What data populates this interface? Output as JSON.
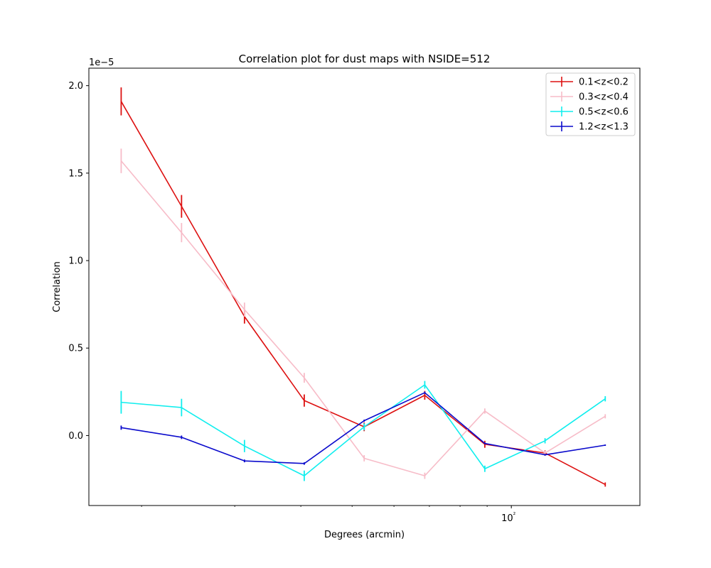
{
  "chart_data": {
    "type": "line",
    "title": "Correlation plot for dust maps with NSIDE=512",
    "xlabel": "Degrees (arcmin)",
    "ylabel": "Correlation",
    "y_offset_label": "1e−5",
    "x_scale": "log",
    "x_major_tick_label": "10²",
    "y_ticks": [
      0.0,
      0.5,
      1.0,
      1.5,
      2.0
    ],
    "y_tick_labels": [
      "0.0",
      "0.5",
      "1.0",
      "1.5",
      "2.0"
    ],
    "ylim": [
      -0.4,
      2.1
    ],
    "x": [
      18.3,
      23.8,
      31.3,
      40.6,
      52.7,
      68.6,
      89.1,
      115.8,
      150.5
    ],
    "legend_position": "upper right",
    "grid": false,
    "series": [
      {
        "name": "0.1<z<0.2",
        "color": "#dd1111",
        "values": [
          1.91,
          1.31,
          0.68,
          0.2,
          0.05,
          0.23,
          -0.05,
          -0.1,
          -0.28
        ],
        "errors": [
          0.08,
          0.065,
          0.04,
          0.035,
          0.025,
          0.025,
          0.02,
          0.015,
          0.012
        ]
      },
      {
        "name": "0.3<z<0.4",
        "color": "#f7bcc8",
        "values": [
          1.57,
          1.16,
          0.72,
          0.33,
          -0.13,
          -0.23,
          0.14,
          -0.1,
          0.11
        ],
        "errors": [
          0.07,
          0.055,
          0.04,
          0.028,
          0.018,
          0.018,
          0.015,
          0.012,
          0.012
        ]
      },
      {
        "name": "0.5<z<0.6",
        "color": "#11eeee",
        "values": [
          0.19,
          0.16,
          -0.06,
          -0.23,
          0.05,
          0.29,
          -0.19,
          -0.03,
          0.21
        ],
        "errors": [
          0.065,
          0.05,
          0.035,
          0.03,
          0.02,
          0.022,
          0.018,
          0.015,
          0.015
        ]
      },
      {
        "name": "1.2<z<1.3",
        "color": "#0a0acc",
        "values": [
          0.045,
          -0.01,
          -0.145,
          -0.16,
          0.085,
          0.245,
          -0.045,
          -0.11,
          -0.055
        ],
        "errors": [
          0.012,
          0.01,
          0.008,
          0.007,
          0.006,
          0.006,
          0.005,
          0.005,
          0.004
        ]
      }
    ]
  }
}
